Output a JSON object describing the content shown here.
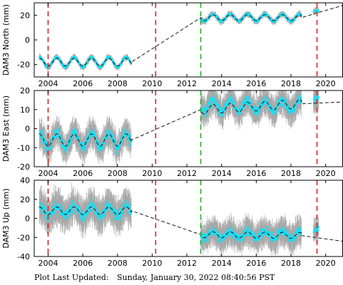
{
  "footer": {
    "label": "Plot Last Updated:",
    "timestamp": "Sunday, January 30, 2022 08:40:56 PST"
  },
  "colors": {
    "data": "#00e5ff",
    "error_bar": "#a8a8a8",
    "model": "#000000",
    "red_line": "#e02020",
    "green_line": "#20b020",
    "frame": "#000000"
  },
  "chart_data": [
    {
      "type": "scatter",
      "ylabel": "DAM3 North (mm)",
      "xlim": [
        2003.2,
        2021.0
      ],
      "ylim": [
        -30,
        30
      ],
      "yticks": [
        -20,
        0,
        20
      ],
      "xticks": [
        2004,
        2006,
        2008,
        2010,
        2012,
        2014,
        2016,
        2018,
        2020
      ],
      "vlines_red": [
        2004.0,
        2010.2,
        2019.5
      ],
      "vlines_green": [
        2012.8
      ],
      "segments": [
        {
          "x_start": 2003.5,
          "x_end": 2008.8,
          "mean": -18,
          "amplitude": 4,
          "error": 2
        },
        {
          "x_start": 2012.8,
          "x_end": 2018.6,
          "mean": 18,
          "amplitude": 3,
          "error": 2
        },
        {
          "x_start": 2019.3,
          "x_end": 2019.6,
          "mean": 22,
          "amplitude": 2,
          "error": 2
        }
      ],
      "model_trend": [
        [
          2003.5,
          -18
        ],
        [
          2008.8,
          -18
        ],
        [
          2012.8,
          18
        ],
        [
          2018.6,
          18
        ],
        [
          2021.0,
          28
        ]
      ]
    },
    {
      "type": "scatter",
      "ylabel": "DAM3 East (mm)",
      "xlim": [
        2003.2,
        2021.0
      ],
      "ylim": [
        -20,
        20
      ],
      "yticks": [
        -20,
        -10,
        0,
        10,
        20
      ],
      "xticks": [
        2004,
        2006,
        2008,
        2010,
        2012,
        2014,
        2016,
        2018,
        2020
      ],
      "vlines_red": [
        2004.0,
        2010.2,
        2019.5
      ],
      "vlines_green": [
        2012.8
      ],
      "segments": [
        {
          "x_start": 2003.5,
          "x_end": 2008.8,
          "mean": -6,
          "amplitude": 4,
          "error": 6
        },
        {
          "x_start": 2012.8,
          "x_end": 2018.6,
          "mean": 12,
          "amplitude": 3,
          "error": 6
        },
        {
          "x_start": 2019.3,
          "x_end": 2019.6,
          "mean": 14,
          "amplitude": 2,
          "error": 6
        }
      ],
      "model_trend": [
        [
          2003.5,
          -6
        ],
        [
          2008.8,
          -6
        ],
        [
          2012.8,
          10
        ],
        [
          2018.6,
          13
        ],
        [
          2021.0,
          14
        ]
      ]
    },
    {
      "type": "scatter",
      "ylabel": "DAM3 Up (mm)",
      "xlim": [
        2003.2,
        2021.0
      ],
      "ylim": [
        -40,
        40
      ],
      "yticks": [
        -40,
        -20,
        0,
        20,
        40
      ],
      "xticks": [
        2004,
        2006,
        2008,
        2010,
        2012,
        2014,
        2016,
        2018,
        2020
      ],
      "vlines_red": [
        2004.0,
        2010.2,
        2019.5
      ],
      "vlines_green": [
        2012.8
      ],
      "segments": [
        {
          "x_start": 2003.5,
          "x_end": 2008.8,
          "mean": 8,
          "amplitude": 5,
          "error": 14
        },
        {
          "x_start": 2012.8,
          "x_end": 2018.6,
          "mean": -17,
          "amplitude": 4,
          "error": 12
        },
        {
          "x_start": 2019.3,
          "x_end": 2019.6,
          "mean": -14,
          "amplitude": 3,
          "error": 10
        }
      ],
      "model_trend": [
        [
          2003.5,
          8
        ],
        [
          2008.8,
          8
        ],
        [
          2012.8,
          -17
        ],
        [
          2018.6,
          -18
        ],
        [
          2021.0,
          -24
        ]
      ]
    }
  ]
}
